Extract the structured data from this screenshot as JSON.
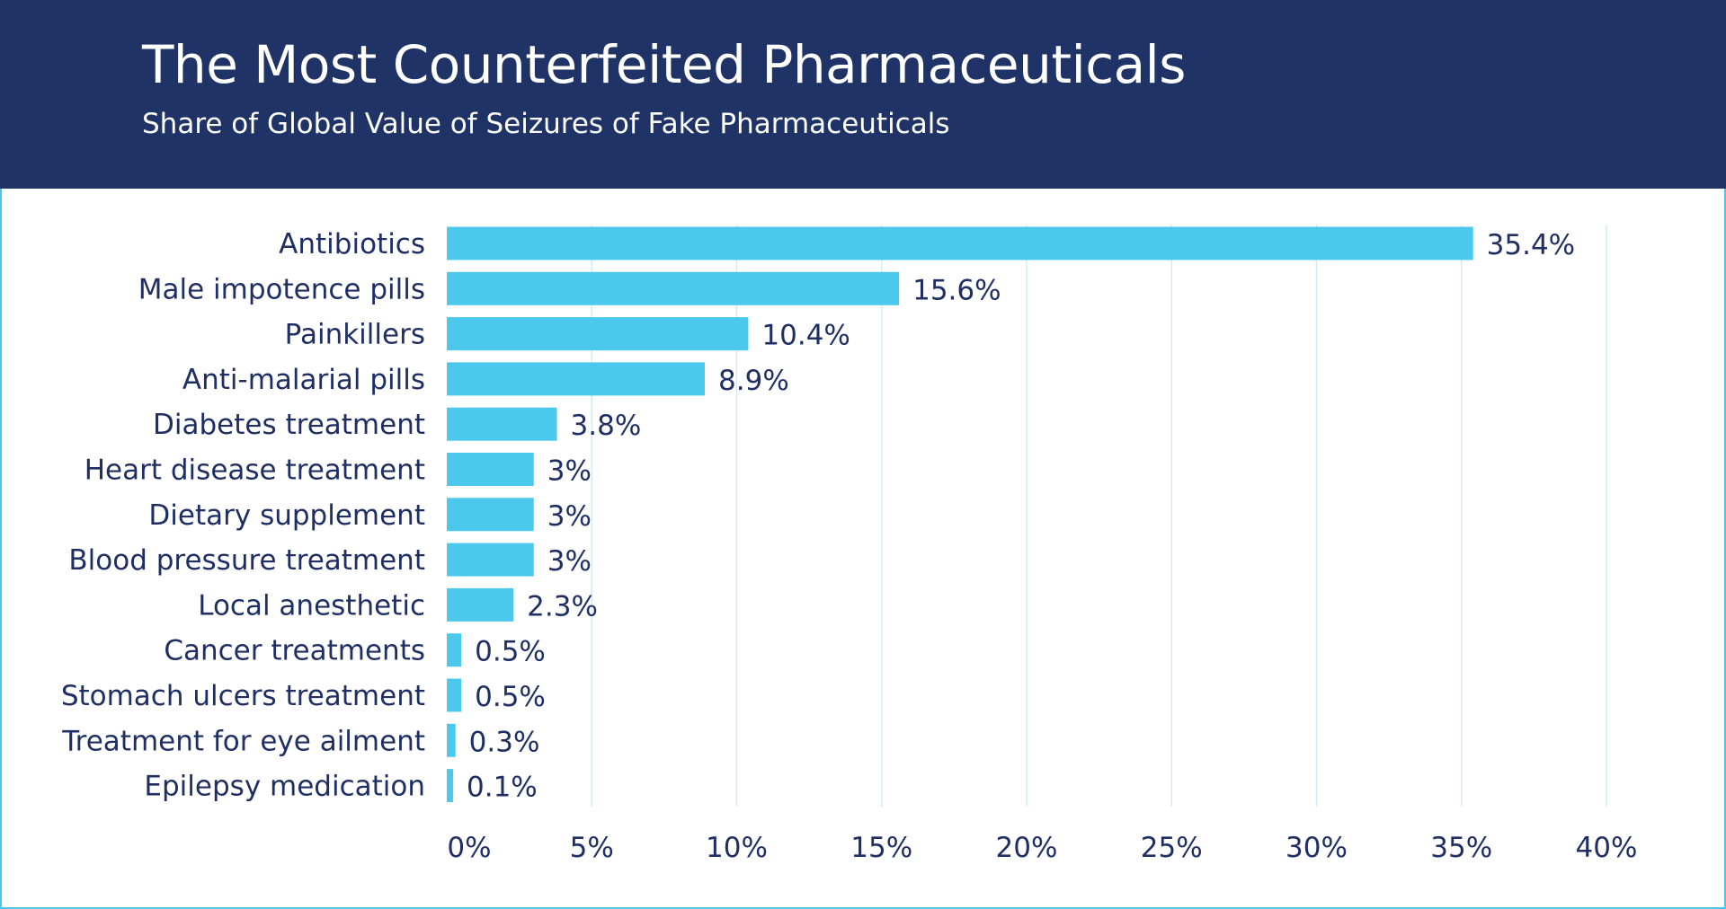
{
  "header": {
    "title": "The Most Counterfeited Pharmaceuticals",
    "subtitle": "Share of Global Value of Seizures of Fake Pharmaceuticals"
  },
  "colors": {
    "header_bg": "#1f3366",
    "bar": "#4cc8ec",
    "gridline": "#cdeef8",
    "text": "#1f2f63"
  },
  "chart_data": {
    "type": "bar",
    "orientation": "horizontal",
    "title": "The Most Counterfeited Pharmaceuticals",
    "subtitle": "Share of Global Value of Seizures of Fake Pharmaceuticals",
    "categories": [
      "Antibiotics",
      "Male impotence pills",
      "Painkillers",
      "Anti-malarial pills",
      "Diabetes treatment",
      "Heart disease treatment",
      "Dietary supplement",
      "Blood pressure treatment",
      "Local anesthetic",
      "Cancer treatments",
      "Stomach ulcers treatment",
      "Treatment for eye ailment",
      "Epilepsy medication"
    ],
    "values": [
      35.4,
      15.6,
      10.4,
      8.9,
      3.8,
      3,
      3,
      3,
      2.3,
      0.5,
      0.5,
      0.3,
      0.1
    ],
    "value_labels": [
      "35.4%",
      "15.6%",
      "10.4%",
      "8.9%",
      "3.8%",
      "3%",
      "3%",
      "3%",
      "2.3%",
      "0.5%",
      "0.5%",
      "0.3%",
      "0.1%"
    ],
    "x_ticks": [
      0,
      5,
      10,
      15,
      20,
      25,
      30,
      35,
      40
    ],
    "x_tick_labels": [
      "0%",
      "5%",
      "10%",
      "15%",
      "20%",
      "25%",
      "30%",
      "35%",
      "40%"
    ],
    "xlim": [
      0,
      40
    ],
    "grid": true,
    "xlabel": "",
    "ylabel": ""
  }
}
